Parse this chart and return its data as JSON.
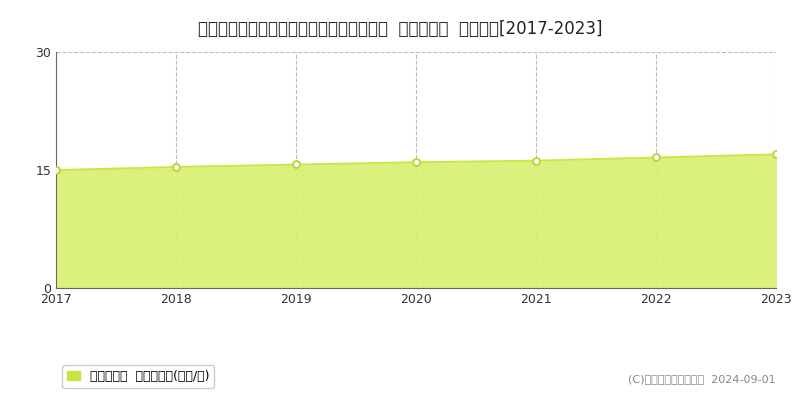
{
  "title": "埼玉県比企郡川島町かわじま２丁目２２番  基準地価格  地価推移[2017-2023]",
  "years": [
    2017,
    2018,
    2019,
    2020,
    2021,
    2022,
    2023
  ],
  "values": [
    15.0,
    15.4,
    15.7,
    16.0,
    16.2,
    16.6,
    17.0
  ],
  "ylim": [
    0,
    30
  ],
  "yticks": [
    0,
    15,
    30
  ],
  "line_color": "#c8e642",
  "fill_color": "#d8f070",
  "fill_alpha": 0.9,
  "marker_color": "#ffffff",
  "marker_edge_color": "#b8d430",
  "marker_size": 5,
  "line_width": 1.2,
  "bg_color": "#ffffff",
  "grid_color": "#bbbbbb",
  "legend_label": "基準地価格  平均坪単価(万円/坪)",
  "legend_color": "#c8e642",
  "copyright_text": "(C)土地価格ドットコム  2024-09-01",
  "title_fontsize": 12,
  "tick_fontsize": 9,
  "legend_fontsize": 9
}
